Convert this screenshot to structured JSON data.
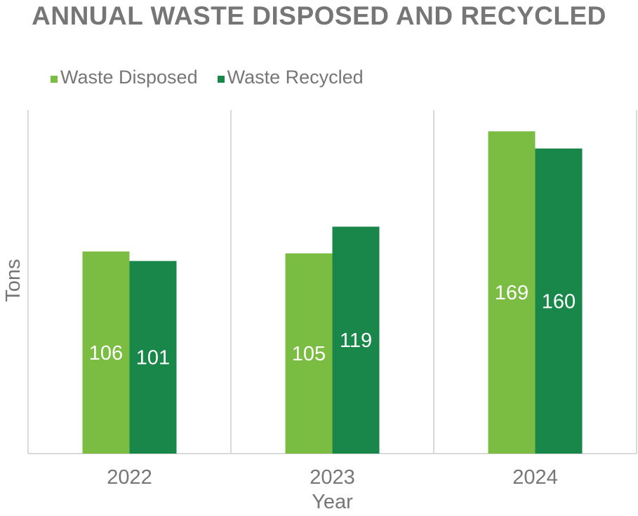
{
  "colors": {
    "waste_disposed": "#7abd42",
    "waste_recycled": "#19864a",
    "axis_text": "#767676",
    "grid": "#d9d9d9",
    "data_label": "#ffffff"
  },
  "chart_data": {
    "type": "bar",
    "title": "ANNUAL WASTE DISPOSED AND RECYCLED",
    "xlabel": "Year",
    "ylabel": "Tons",
    "categories": [
      "2022",
      "2023",
      "2024"
    ],
    "series": [
      {
        "name": "Waste Disposed",
        "values": [
          106,
          105,
          169
        ]
      },
      {
        "name": "Waste Recycled",
        "values": [
          101,
          119,
          160
        ]
      }
    ],
    "ylim": [
      0,
      180
    ],
    "legend_position": "top-left",
    "grid": "vertical category separators",
    "data_labels": true
  }
}
